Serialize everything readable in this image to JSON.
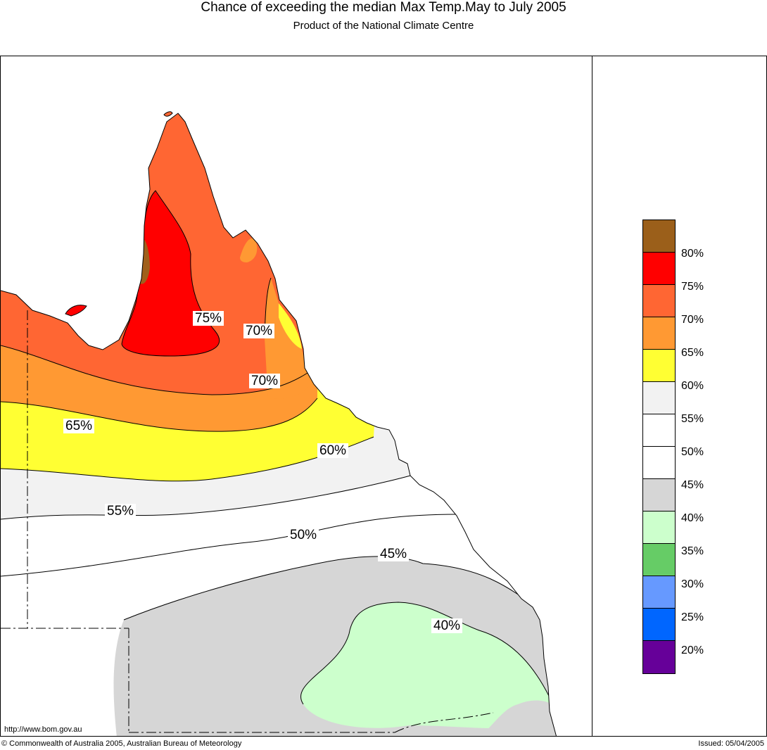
{
  "header": {
    "title": "Chance of exceeding the median Max Temp.May to July 2005",
    "subtitle": "Product of the National Climate Centre"
  },
  "map": {
    "contour_labels": [
      "75%",
      "70%",
      "70%",
      "65%",
      "60%",
      "55%",
      "50%",
      "45%",
      "40%"
    ],
    "band_colors": {
      "above_80": "#a0601c",
      "75_80": "#ff0000",
      "70_75": "#ff6633",
      "65_70": "#ff9933",
      "60_65": "#ffff33",
      "55_60": "#f2f2f2",
      "45_55": "#ffffff",
      "40_45": "#d6d6d6",
      "35_40": "#ccffcc"
    }
  },
  "legend": {
    "swatches": [
      "#9b5f1a",
      "#ff0000",
      "#ff6633",
      "#ff9933",
      "#ffff33",
      "#f2f2f2",
      "#ffffff",
      "#ffffff",
      "#d6d6d6",
      "#ccffcc",
      "#66cc66",
      "#6699ff",
      "#0066ff",
      "#660099"
    ],
    "labels": [
      "80%",
      "75%",
      "70%",
      "65%",
      "60%",
      "55%",
      "50%",
      "45%",
      "40%",
      "35%",
      "30%",
      "25%",
      "20%"
    ]
  },
  "footer": {
    "url": "http://www.bom.gov.au",
    "copyright": "© Commonwealth of Australia 2005, Australian Bureau of Meteorology",
    "issued": "Issued: 05/04/2005"
  }
}
